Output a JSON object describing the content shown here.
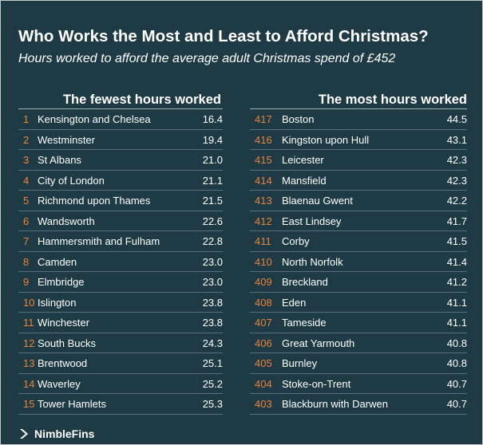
{
  "title": "Who Works the Most and Least to Afford Christmas?",
  "subtitle": "Hours worked to afford the average adult Christmas spend of £452",
  "left": {
    "heading": "The fewest hours worked",
    "rows": [
      {
        "rank": "1",
        "name": "Kensington and Chelsea",
        "value": "16.4"
      },
      {
        "rank": "2",
        "name": "Westminster",
        "value": "19.4"
      },
      {
        "rank": "3",
        "name": "St Albans",
        "value": "21.0"
      },
      {
        "rank": "4",
        "name": "City of London",
        "value": "21.1"
      },
      {
        "rank": "5",
        "name": "Richmond upon Thames",
        "value": "21.5"
      },
      {
        "rank": "6",
        "name": "Wandsworth",
        "value": "22.6"
      },
      {
        "rank": "7",
        "name": "Hammersmith and Fulham",
        "value": "22.8"
      },
      {
        "rank": "8",
        "name": "Camden",
        "value": "23.0"
      },
      {
        "rank": "9",
        "name": "Elmbridge",
        "value": "23.0"
      },
      {
        "rank": "10",
        "name": "Islington",
        "value": "23.8"
      },
      {
        "rank": "11",
        "name": "Winchester",
        "value": "23.8"
      },
      {
        "rank": "12",
        "name": "South Bucks",
        "value": "24.3"
      },
      {
        "rank": "13",
        "name": "Brentwood",
        "value": "25.1"
      },
      {
        "rank": "14",
        "name": "Waverley",
        "value": "25.2"
      },
      {
        "rank": "15",
        "name": "Tower Hamlets",
        "value": "25.3"
      }
    ]
  },
  "right": {
    "heading": "The most hours worked",
    "rows": [
      {
        "rank": "417",
        "name": "Boston",
        "value": "44.5"
      },
      {
        "rank": "416",
        "name": "Kingston upon Hull",
        "value": "43.1"
      },
      {
        "rank": "415",
        "name": "Leicester",
        "value": "42.3"
      },
      {
        "rank": "414",
        "name": "Mansfield",
        "value": "42.3"
      },
      {
        "rank": "413",
        "name": "Blaenau Gwent",
        "value": "42.2"
      },
      {
        "rank": "412",
        "name": "East Lindsey",
        "value": "41.7"
      },
      {
        "rank": "411",
        "name": "Corby",
        "value": "41.5"
      },
      {
        "rank": "410",
        "name": "North Norfolk",
        "value": "41.4"
      },
      {
        "rank": "409",
        "name": "Breckland",
        "value": "41.2"
      },
      {
        "rank": "408",
        "name": "Eden",
        "value": "41.1"
      },
      {
        "rank": "407",
        "name": "Tameside",
        "value": "41.1"
      },
      {
        "rank": "406",
        "name": "Great Yarmouth",
        "value": "40.8"
      },
      {
        "rank": "405",
        "name": "Burnley",
        "value": "40.8"
      },
      {
        "rank": "404",
        "name": "Stoke-on-Trent",
        "value": "40.7"
      },
      {
        "rank": "403",
        "name": "Blackburn with Darwen",
        "value": "40.7"
      }
    ]
  },
  "footer": {
    "brand": "NimbleFins",
    "logo_icon": "nimblefins-logo-icon"
  },
  "colors": {
    "background": "#1e3b45",
    "rank": "#e9833a",
    "text": "#ffffff"
  }
}
